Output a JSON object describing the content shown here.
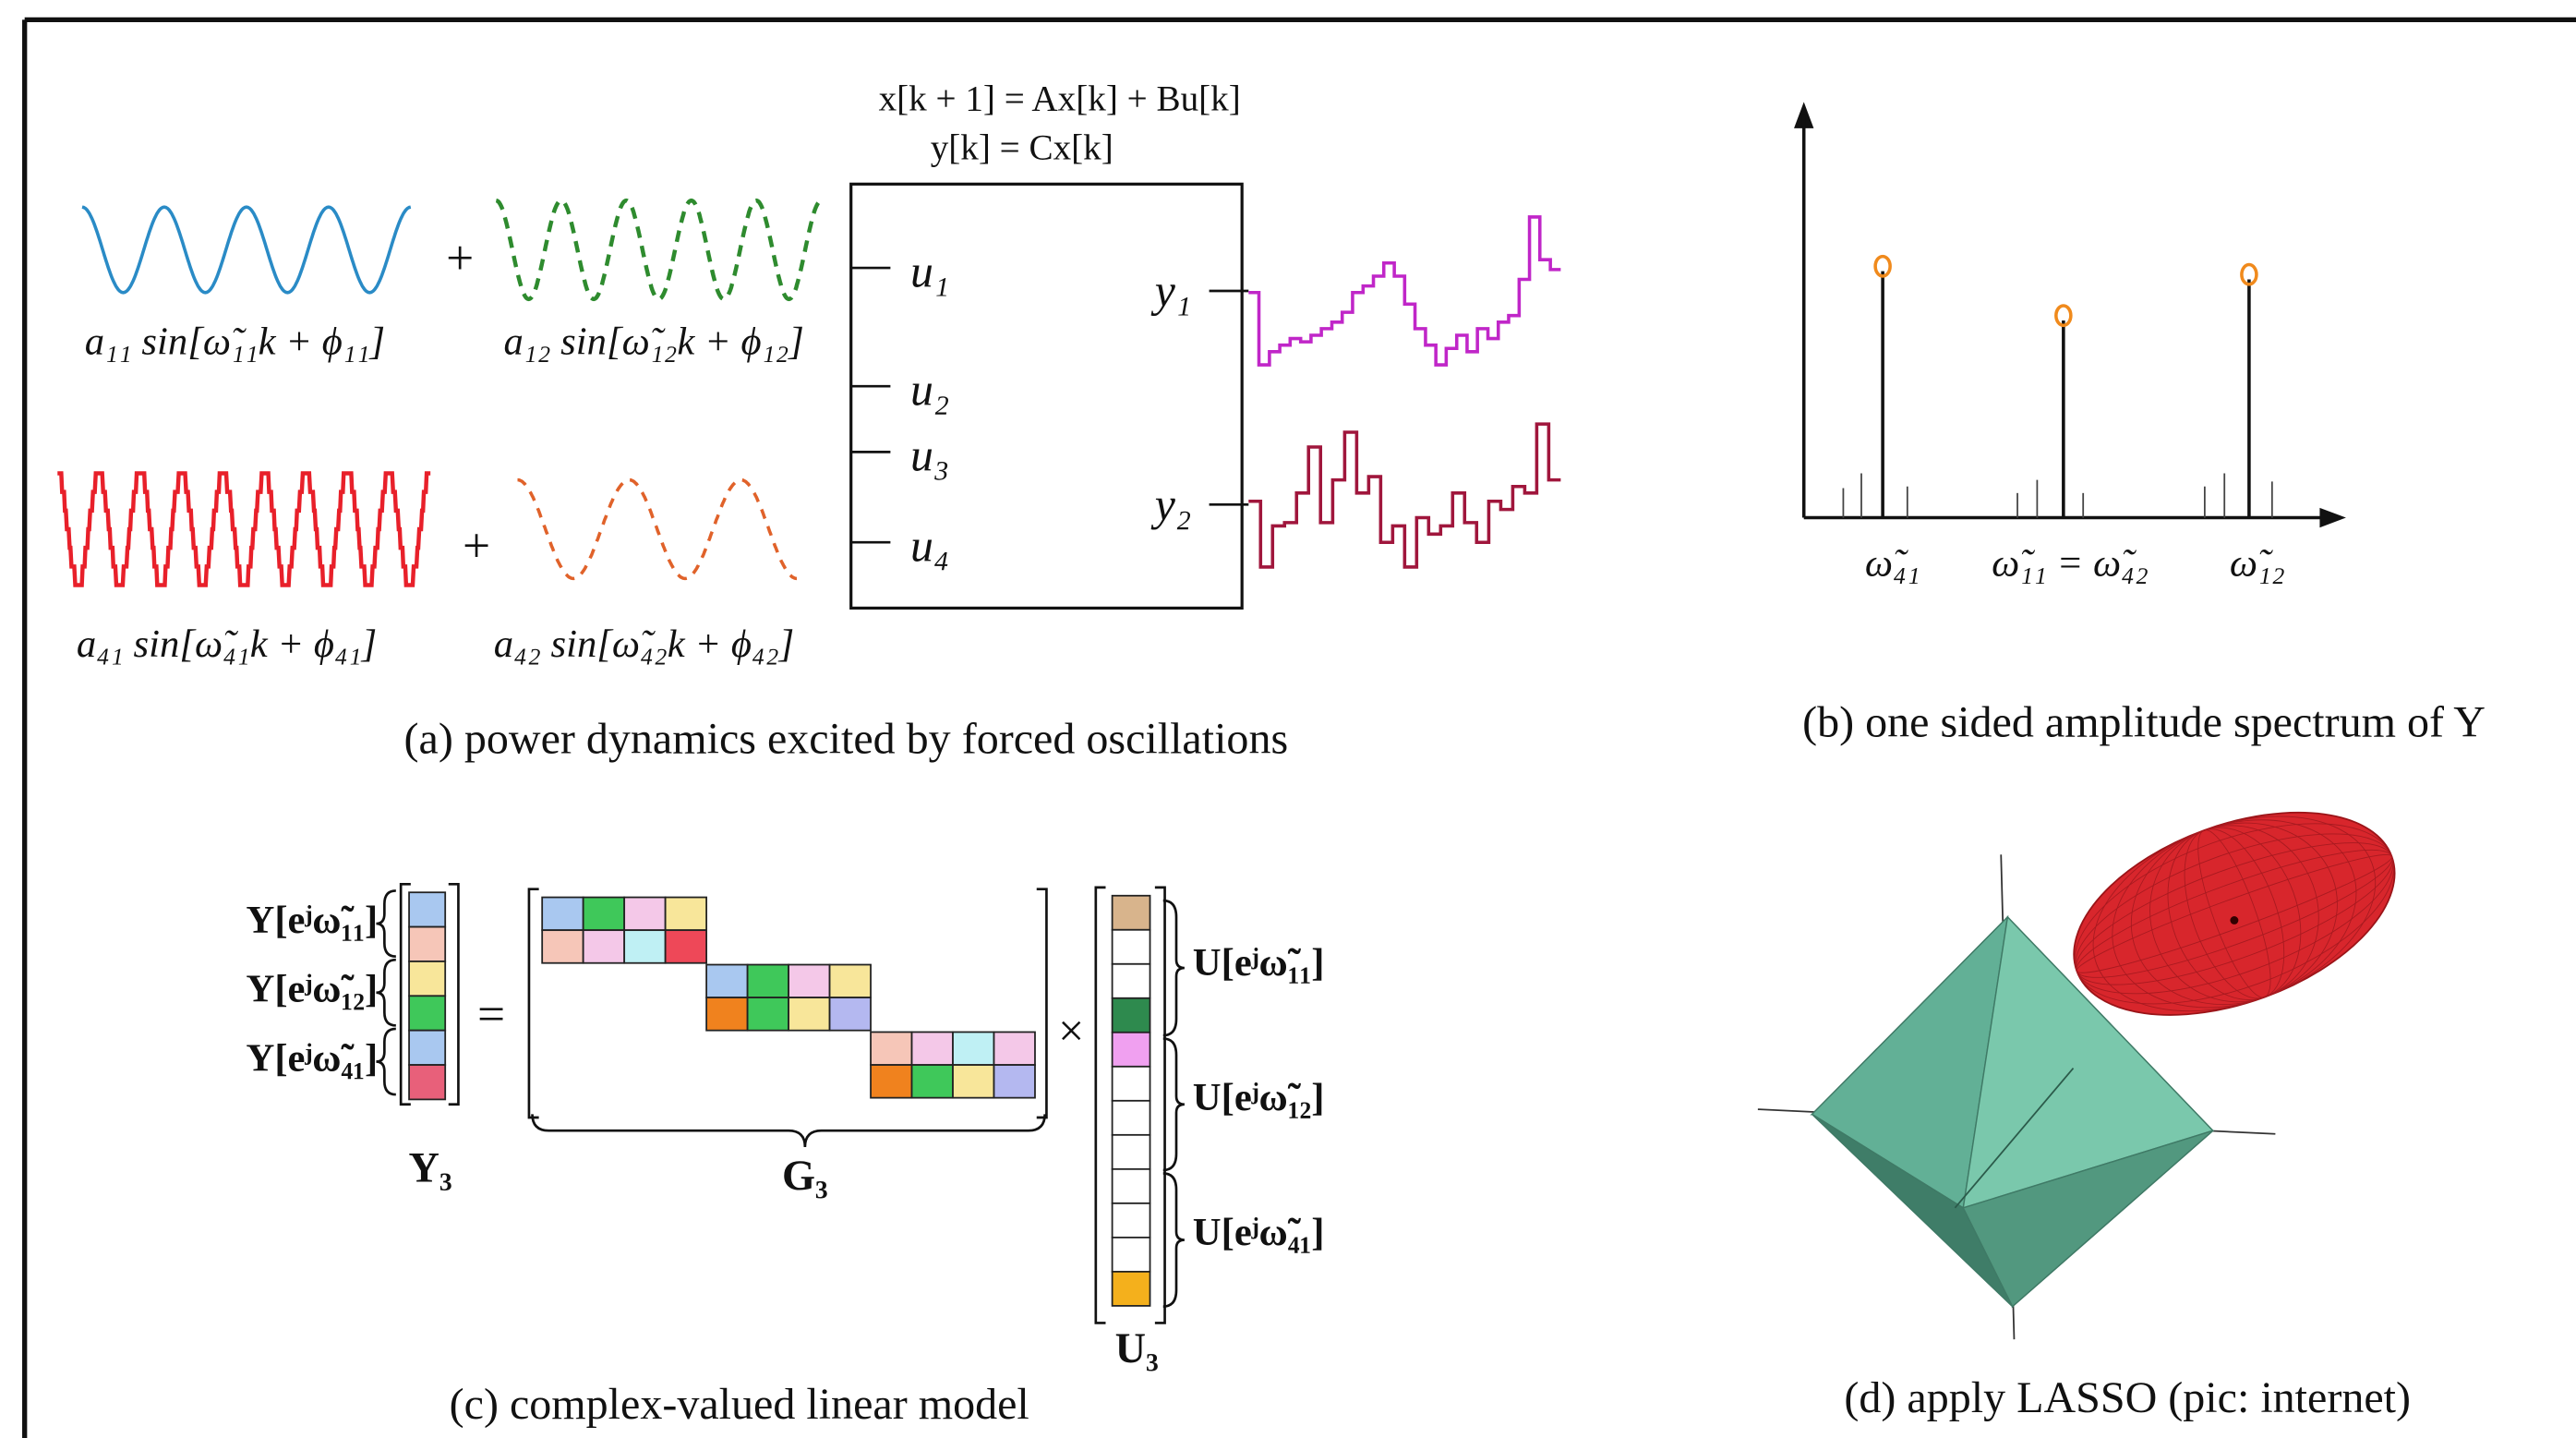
{
  "panel_a": {
    "state_equation": "x[k + 1] = Ax[k] + Bu[k]",
    "output_equation": "y[k] = Cx[k]",
    "plus_signs": [
      "+",
      "+"
    ],
    "signal_labels": [
      "a₁₁ sin[ω̃₁₁k + ϕ₁₁]",
      "a₁₂ sin[ω̃₁₂k + ϕ₁₂]",
      "a₄₁ sin[ω̃₄₁k + ϕ₄₁]",
      "a₄₂ sin[ω̃₄₂k + ϕ₄₂]"
    ],
    "inputs": [
      "u₁",
      "u₂",
      "u₃",
      "u₄"
    ],
    "outputs": [
      "y₁",
      "y₂"
    ],
    "caption": "(a) power dynamics excited by forced oscillations"
  },
  "panel_b": {
    "frequency_labels": [
      "ω̃₄₁",
      "ω̃₁₁ = ω̃₄₂",
      "ω̃₁₂"
    ],
    "caption": "(b) one sided amplitude spectrum of Y"
  },
  "panel_c": {
    "y_blocks": [
      "Y[eʲω̃₁₁]",
      "Y[eʲω̃₁₂]",
      "Y[eʲω̃₄₁]"
    ],
    "equals": "=",
    "times": "×",
    "y_name": "Y₃",
    "g_name": "G₃",
    "u_name": "U₃",
    "u_blocks": [
      "U[eʲω̃₁₁]",
      "U[eʲω̃₁₂]",
      "U[eʲω̃₄₁]"
    ],
    "caption": "(c) complex-valued linear model"
  },
  "panel_d": {
    "caption": "(d) apply LASSO (pic: internet)"
  }
}
